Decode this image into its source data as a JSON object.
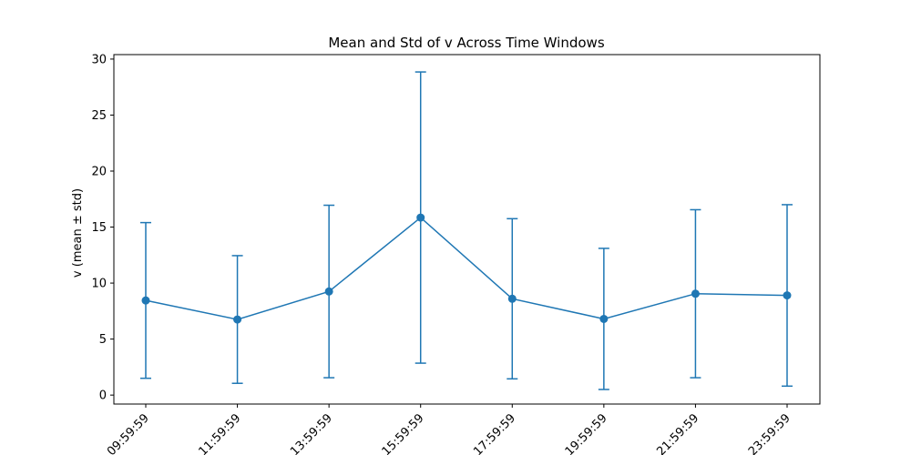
{
  "chart_data": {
    "type": "line",
    "title": "Mean and Std of v Across Time Windows",
    "xlabel": "",
    "ylabel": "v (mean ± std)",
    "categories": [
      "09:59:59",
      "11:59:59",
      "13:59:59",
      "15:59:59",
      "17:59:59",
      "19:59:59",
      "21:59:59",
      "23:59:59"
    ],
    "series": [
      {
        "name": "",
        "mean": [
          8.45,
          6.75,
          9.25,
          15.85,
          8.6,
          6.8,
          9.05,
          8.9
        ],
        "std": [
          6.95,
          5.7,
          7.7,
          13.0,
          7.15,
          6.3,
          7.5,
          8.1
        ],
        "color": "#1f77b4"
      }
    ],
    "ylim": [
      -0.8,
      30.4
    ],
    "yticks": [
      0,
      5,
      10,
      15,
      20,
      25,
      30
    ],
    "grid": false
  }
}
